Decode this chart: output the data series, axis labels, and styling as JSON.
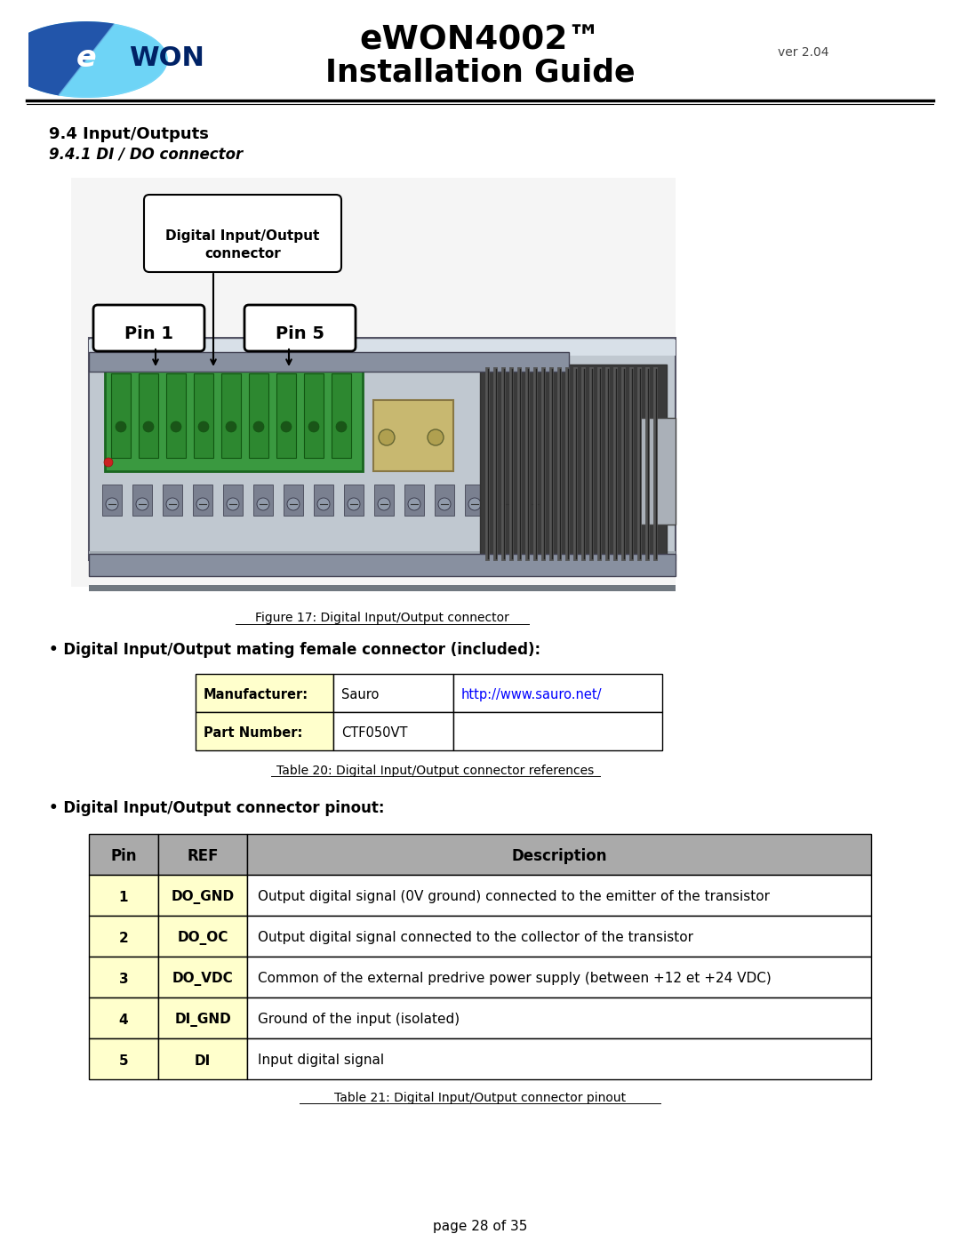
{
  "page_bg": "#ffffff",
  "header_title_line1": "eWON4002™",
  "header_title_line2": "Installation Guide",
  "header_version": "ver 2.04",
  "section_title": "9.4 Input/Outputs",
  "section_subtitle": "9.4.1 DI / DO connector",
  "figure_caption": "Figure 17: Digital Input/Output connector",
  "connector_label": "Digital Input/Output\nconnector",
  "pin1_label": "Pin 1",
  "pin5_label": "Pin 5",
  "bullet1_text": "• Digital Input/Output mating female connector (included):",
  "table1_caption": "Table 20: Digital Input/Output connector references",
  "table1_header_bg": "#ffffcc",
  "table1_rows": [
    [
      "Manufacturer:",
      "Sauro",
      "http://www.sauro.net/"
    ],
    [
      "Part Number:",
      "CTF050VT",
      ""
    ]
  ],
  "bullet2_text": "• Digital Input/Output connector pinout:",
  "table2_caption": "Table 21: Digital Input/Output connector pinout",
  "table2_header": [
    "Pin",
    "REF",
    "Description"
  ],
  "table2_header_bg": "#aaaaaa",
  "table2_row_bg": "#ffffcc",
  "table2_rows": [
    [
      "1",
      "DO_GND",
      "Output digital signal (0V ground) connected to the emitter of the transistor"
    ],
    [
      "2",
      "DO_OC",
      "Output digital signal connected to the collector of the transistor"
    ],
    [
      "3",
      "DO_VDC",
      "Common of the external predrive power supply (between +12 et +24 VDC)"
    ],
    [
      "4",
      "DI_GND",
      "Ground of the input (isolated)"
    ],
    [
      "5",
      "DI",
      "Input digital signal"
    ]
  ],
  "page_footer": "page 28 of 35",
  "link_color": "#0000ff"
}
